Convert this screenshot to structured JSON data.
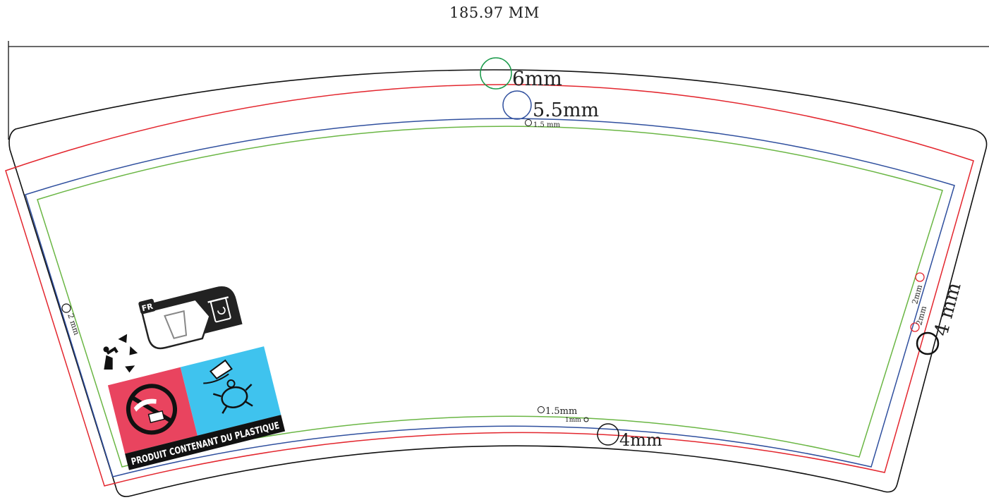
{
  "title": "185.97 MM",
  "labels": {
    "top_green": "6mm",
    "top_blue": "5.5mm",
    "top_small": "1.5 mm",
    "left_edge": "2 mm",
    "bottom_green": "1.5mm",
    "bottom_red": "1mm",
    "bottom_black": "4mm",
    "right_a": "2mm",
    "right_b": "2mm",
    "right_black": "4 mm"
  },
  "logo": {
    "fr_badge": "FR",
    "banner": "PRODUIT CONTENANT DU PLASTIQUE"
  },
  "colors": {
    "outline": "#111111",
    "red": "#e3262e",
    "blue": "#2f4f9e",
    "green": "#6ab644",
    "green_circle": "#1a9a4a",
    "pink": "#e9445f",
    "cyan": "#3fc3ee"
  }
}
